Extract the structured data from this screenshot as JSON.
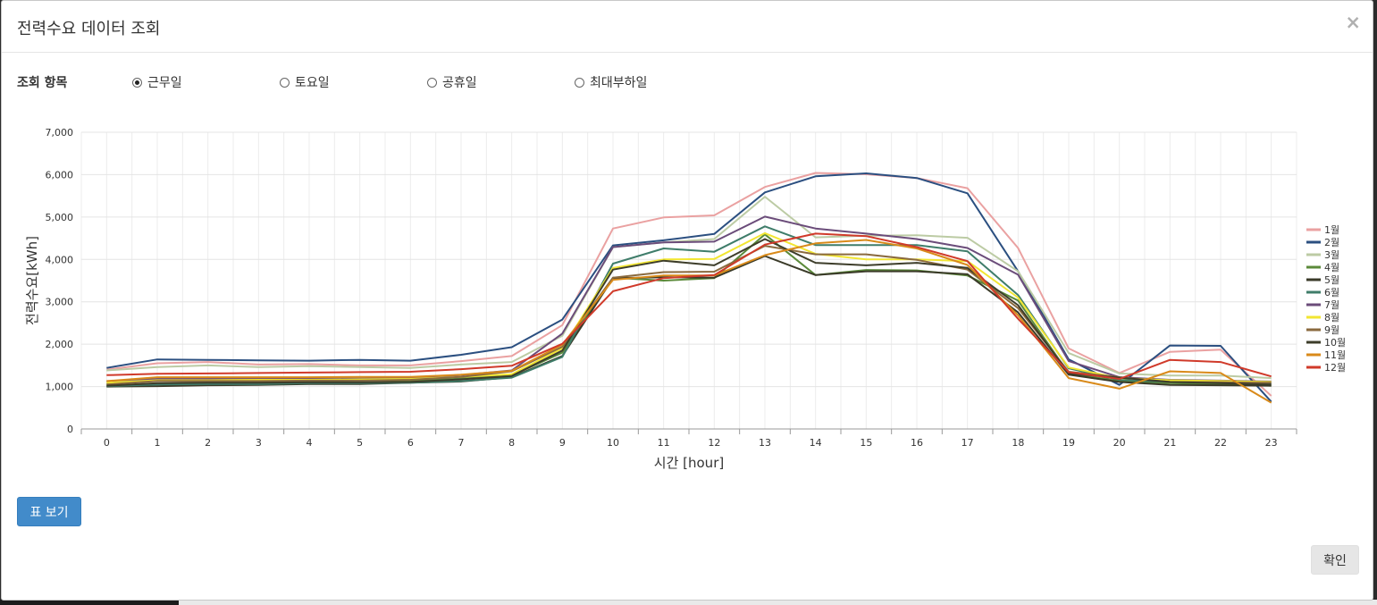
{
  "dialog": {
    "title": "전력수요 데이터 조회",
    "close_label": "×"
  },
  "options": {
    "label": "조회 항목",
    "items": [
      {
        "label": "근무일",
        "selected": true
      },
      {
        "label": "토요일",
        "selected": false
      },
      {
        "label": "공휴일",
        "selected": false
      },
      {
        "label": "최대부하일",
        "selected": false
      }
    ]
  },
  "buttons": {
    "table_view": "표 보기",
    "confirm": "확인"
  },
  "chart_data": {
    "type": "line",
    "xlabel": "시간 [hour]",
    "ylabel": "전력수요[kWh]",
    "ylim": [
      0,
      7000
    ],
    "yticks": [
      "0",
      "1,000",
      "2,000",
      "3,000",
      "4,000",
      "5,000",
      "6,000",
      "7,000"
    ],
    "x": [
      0,
      1,
      2,
      3,
      4,
      5,
      6,
      7,
      8,
      9,
      10,
      11,
      12,
      13,
      14,
      15,
      16,
      17,
      18,
      19,
      20,
      21,
      22,
      23
    ],
    "grid": true,
    "legend_position": "right",
    "series": [
      {
        "name": "1월",
        "color": "#eaa1a1",
        "values": [
          1400,
          1550,
          1580,
          1520,
          1530,
          1500,
          1500,
          1600,
          1720,
          2450,
          4730,
          4990,
          5040,
          5710,
          6040,
          6010,
          5920,
          5680,
          4270,
          1900,
          1320,
          1820,
          1870,
          780
        ]
      },
      {
        "name": "2월",
        "color": "#2b4f80",
        "values": [
          1440,
          1640,
          1630,
          1620,
          1610,
          1630,
          1610,
          1750,
          1930,
          2580,
          4330,
          4450,
          4600,
          5580,
          5960,
          6030,
          5920,
          5560,
          3720,
          1640,
          1040,
          1970,
          1960,
          640
        ]
      },
      {
        "name": "3월",
        "color": "#bccba4",
        "values": [
          1380,
          1460,
          1500,
          1460,
          1480,
          1460,
          1440,
          1520,
          1580,
          2200,
          4290,
          4400,
          4480,
          5480,
          4520,
          4560,
          4570,
          4510,
          3720,
          1790,
          1310,
          1260,
          1260,
          1200
        ]
      },
      {
        "name": "4월",
        "color": "#5b8a3a",
        "values": [
          1060,
          1140,
          1130,
          1130,
          1120,
          1150,
          1140,
          1200,
          1260,
          1800,
          3570,
          3500,
          3560,
          4590,
          3630,
          3750,
          3740,
          3620,
          3030,
          1310,
          1130,
          1080,
          1060,
          1020
        ]
      },
      {
        "name": "5월",
        "color": "#3a3a28",
        "values": [
          1000,
          1010,
          1030,
          1040,
          1060,
          1060,
          1090,
          1120,
          1220,
          1720,
          3560,
          3580,
          3570,
          4080,
          3630,
          3720,
          3720,
          3650,
          2750,
          1280,
          1110,
          1040,
          1030,
          1020
        ]
      },
      {
        "name": "6월",
        "color": "#3f7d6a",
        "values": [
          1010,
          1050,
          1060,
          1060,
          1080,
          1080,
          1090,
          1130,
          1210,
          1700,
          3900,
          4260,
          4180,
          4780,
          4340,
          4340,
          4340,
          4190,
          3160,
          1430,
          1160,
          1110,
          1090,
          1070
        ]
      },
      {
        "name": "7월",
        "color": "#6b4c7a",
        "values": [
          1120,
          1180,
          1180,
          1180,
          1190,
          1190,
          1200,
          1270,
          1380,
          2250,
          4290,
          4400,
          4420,
          5010,
          4730,
          4610,
          4480,
          4270,
          3640,
          1600,
          1220,
          1160,
          1140,
          1120
        ]
      },
      {
        "name": "8월",
        "color": "#f2e632",
        "values": [
          1090,
          1150,
          1150,
          1160,
          1160,
          1170,
          1180,
          1230,
          1290,
          1900,
          3800,
          4000,
          4010,
          4620,
          4130,
          4000,
          4000,
          3960,
          3100,
          1450,
          1200,
          1150,
          1130,
          1110
        ]
      },
      {
        "name": "9월",
        "color": "#8a6a3e",
        "values": [
          1050,
          1130,
          1130,
          1130,
          1140,
          1140,
          1160,
          1230,
          1360,
          1940,
          3570,
          3700,
          3710,
          4320,
          4120,
          4120,
          3990,
          3760,
          2850,
          1350,
          1220,
          1110,
          1100,
          1090
        ]
      },
      {
        "name": "10월",
        "color": "#3d3d2a",
        "values": [
          1020,
          1080,
          1090,
          1090,
          1100,
          1100,
          1110,
          1170,
          1250,
          1850,
          3760,
          3970,
          3860,
          4480,
          3920,
          3860,
          3920,
          3800,
          2920,
          1310,
          1210,
          1110,
          1080,
          1050
        ]
      },
      {
        "name": "11월",
        "color": "#d98a1a",
        "values": [
          1130,
          1220,
          1220,
          1220,
          1220,
          1230,
          1230,
          1280,
          1370,
          1990,
          3520,
          3620,
          3620,
          4100,
          4380,
          4460,
          4260,
          3870,
          2680,
          1200,
          950,
          1360,
          1320,
          620
        ]
      },
      {
        "name": "12월",
        "color": "#d03a2a",
        "values": [
          1270,
          1300,
          1310,
          1320,
          1330,
          1340,
          1350,
          1410,
          1490,
          2010,
          3250,
          3560,
          3630,
          4350,
          4610,
          4550,
          4290,
          3960,
          2600,
          1340,
          1180,
          1630,
          1580,
          1240
        ]
      }
    ]
  }
}
